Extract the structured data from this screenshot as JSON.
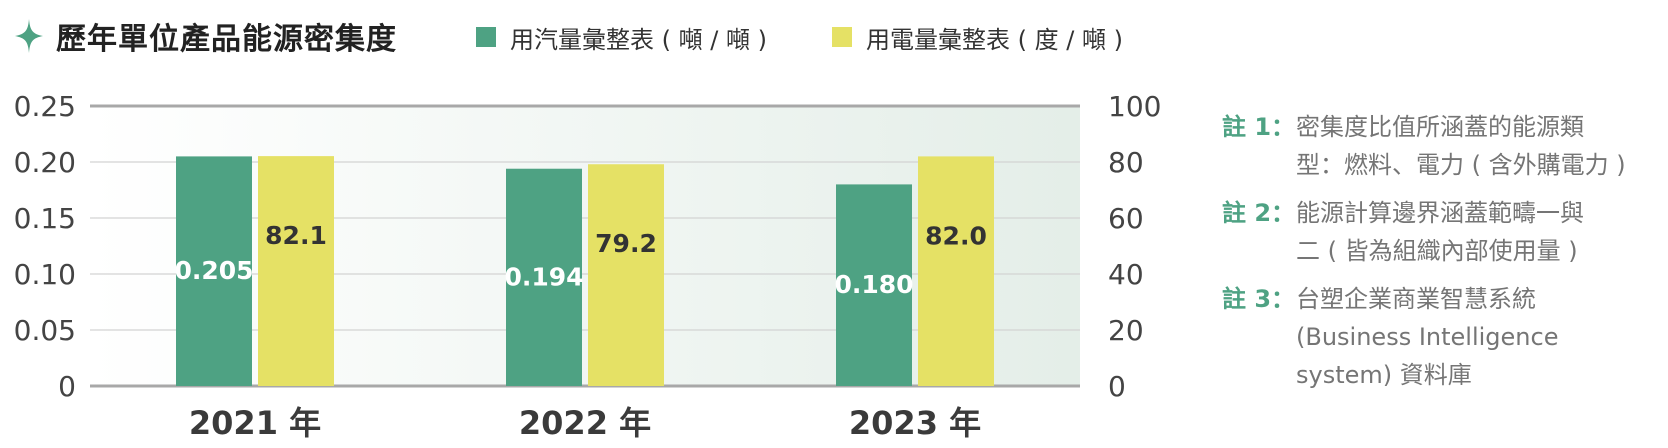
{
  "title": "歷年單位產品能源密集度",
  "icon": "sparkle-star-icon",
  "colors": {
    "steam": "#4ea283",
    "electricity": "#e5e165",
    "accent": "#4ea283"
  },
  "legend": [
    {
      "label": "用汽量彙整表 ( 噸 / 噸 )",
      "color": "#4ea283"
    },
    {
      "label": "用電量彙整表 ( 度 / 噸 )",
      "color": "#e5e165"
    }
  ],
  "chart_data": {
    "type": "bar",
    "title": "歷年單位產品能源密集度",
    "categories": [
      "2021 年",
      "2022 年",
      "2023 年"
    ],
    "series": [
      {
        "name": "用汽量彙整表 ( 噸 / 噸 )",
        "axis": "left",
        "values": [
          0.205,
          0.194,
          0.18
        ],
        "labels": [
          "0.205",
          "0.194",
          "0.180"
        ]
      },
      {
        "name": "用電量彙整表 ( 度 / 噸 )",
        "axis": "right",
        "values": [
          82.1,
          79.2,
          82.0
        ],
        "labels": [
          "82.1",
          "79.2",
          "82.0"
        ]
      }
    ],
    "y_left": {
      "range": [
        0,
        0.25
      ],
      "ticks": [
        "0",
        "0.05",
        "0.10",
        "0.15",
        "0.20",
        "0.25"
      ]
    },
    "y_right": {
      "range": [
        0,
        100
      ],
      "ticks": [
        "0",
        "20",
        "40",
        "60",
        "80",
        "100"
      ]
    },
    "grid": true,
    "legend_position": "top"
  },
  "notes": [
    {
      "mark": "註 1：",
      "lines": [
        "密集度比值所涵蓋的能源類",
        "型：燃料、電力 ( 含外購電力 )"
      ]
    },
    {
      "mark": "註 2：",
      "lines": [
        "能源計算邊界涵蓋範疇一與",
        "二 ( 皆為組織內部使用量 )"
      ]
    },
    {
      "mark": "註 3：",
      "lines": [
        "台塑企業商業智慧系統",
        "(Business Intelligence",
        "system) 資料庫"
      ]
    }
  ]
}
